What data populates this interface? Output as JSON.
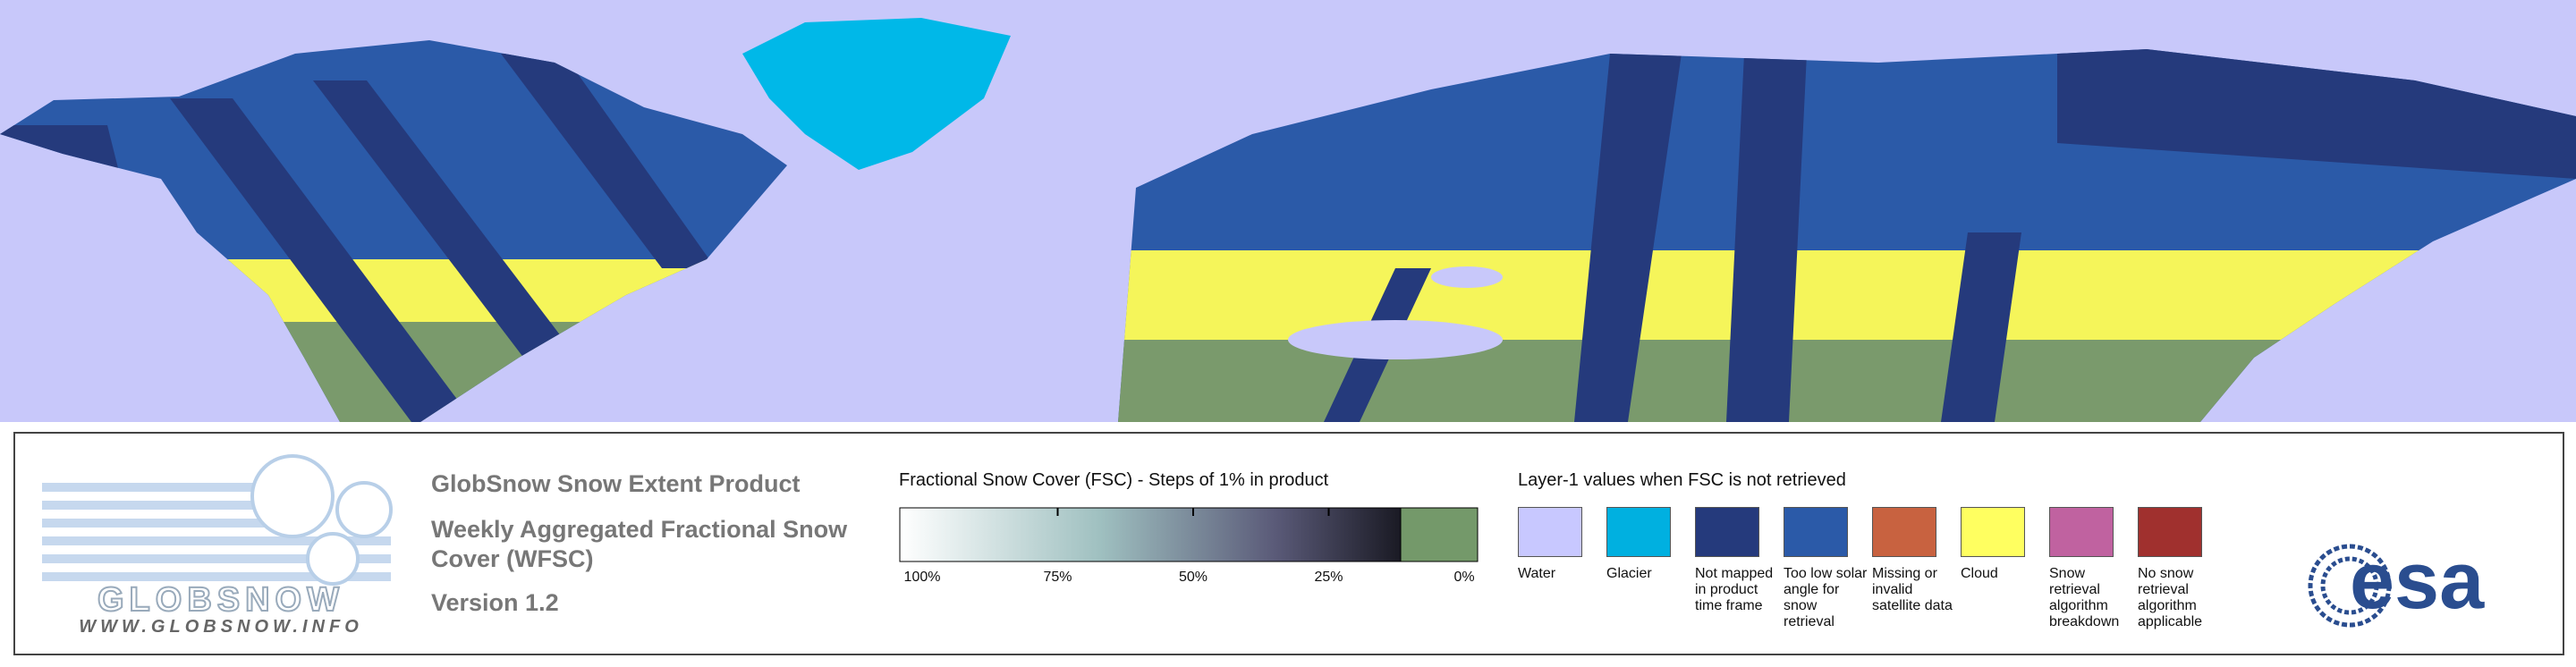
{
  "logo": {
    "name": "GLOBSNOW",
    "url": "WWW.GLOBSNOW.INFO"
  },
  "product": {
    "title": "GlobSnow Snow Extent Product",
    "subtitle": "Weekly Aggregated Fractional Snow Cover (WFSC)",
    "version": "Version 1.2"
  },
  "fsc_legend": {
    "title": "Fractional Snow Cover (FSC) - Steps of 1% in product",
    "ticks": [
      {
        "value": 100,
        "label": "100%"
      },
      {
        "value": 75,
        "label": "75%"
      },
      {
        "value": 50,
        "label": "50%"
      },
      {
        "value": 25,
        "label": "25%"
      },
      {
        "value": 0,
        "label": "0%"
      }
    ]
  },
  "layer1_legend": {
    "title": "Layer-1 values when FSC is not retrieved",
    "items": [
      {
        "label": "Water",
        "color": "#c8c8ff"
      },
      {
        "label": "Glacier",
        "color": "#00b0e0"
      },
      {
        "label": "Not mapped in product time frame",
        "color": "#253a7c"
      },
      {
        "label": "Too low solar angle for snow retrieval",
        "color": "#2b5aa8"
      },
      {
        "label": "Missing or invalid satellite data",
        "color": "#c86240"
      },
      {
        "label": "Cloud",
        "color": "#ffff60"
      },
      {
        "label": "Snow retrieval algorithm breakdown",
        "color": "#c062a0"
      },
      {
        "label": "No snow retrieval algorithm applicable",
        "color": "#a0302e"
      }
    ]
  },
  "esa_logo": "esa"
}
